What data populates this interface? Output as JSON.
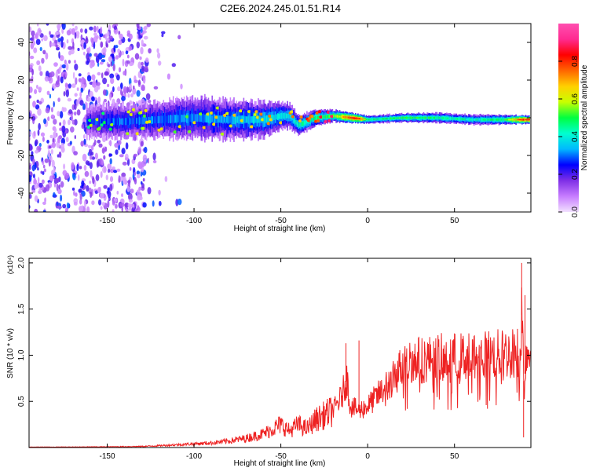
{
  "title": "C2E6.2024.245.01.51.R14",
  "chart_data": [
    {
      "type": "heatmap",
      "xlabel": "Height of straight line (km)",
      "ylabel": "Frequency (Hz)",
      "xlim": [
        -195,
        94
      ],
      "ylim": [
        -50,
        50
      ],
      "x_ticks": [
        -150,
        -100,
        -50,
        0,
        50
      ],
      "y_ticks": [
        -40,
        -20,
        0,
        20,
        40
      ],
      "colorbar": {
        "label": "Normalized spectral amplitude",
        "range": [
          0,
          1
        ],
        "ticks": [
          "0.0",
          "0.2",
          "0.4",
          "0.6",
          "0.8"
        ],
        "tick_values": [
          0.0,
          0.2,
          0.4,
          0.6,
          0.8
        ],
        "colors": [
          "#f2e0ff",
          "#c77dff",
          "#7f2fe6",
          "#0000ff",
          "#00b8ff",
          "#00ffd0",
          "#00ff40",
          "#c8ff00",
          "#ffd000",
          "#ff6600",
          "#ff0000",
          "#ff2a90",
          "#ff4fb0"
        ]
      },
      "centerline": {
        "x": [
          -160,
          -140,
          -120,
          -100,
          -80,
          -60,
          -50,
          -45,
          -40,
          -30,
          -20,
          -10,
          0,
          20,
          40,
          60,
          80,
          88,
          92
        ],
        "y": [
          -2,
          -2,
          -1,
          0,
          -1,
          -1,
          1,
          1,
          -4,
          0,
          1,
          0,
          -1,
          0,
          0,
          -1,
          -1,
          -1,
          -1
        ]
      },
      "band_amplitude": {
        "x": [
          -160,
          -140,
          -120,
          -100,
          -80,
          -60,
          -50,
          -45,
          -40,
          -30,
          -20,
          -10,
          -5,
          0,
          10,
          20,
          40,
          60,
          80,
          88,
          92
        ],
        "amp": [
          0.3,
          0.35,
          0.35,
          0.38,
          0.4,
          0.45,
          0.45,
          0.45,
          0.5,
          0.55,
          0.65,
          0.95,
          0.95,
          0.55,
          0.55,
          0.6,
          0.55,
          0.5,
          0.6,
          0.95,
          0.95
        ]
      },
      "band_halfwidth_hz": {
        "x": [
          -160,
          -120,
          -100,
          -60,
          -50,
          -40,
          -30,
          -20,
          0,
          40,
          80,
          92
        ],
        "w": [
          8,
          9,
          11,
          9,
          7,
          5,
          4,
          3,
          2,
          2.5,
          2.5,
          2
        ]
      },
      "noise_region_x": [
        -195,
        -127
      ]
    },
    {
      "type": "line",
      "xlabel": "Height of straight line (km)",
      "ylabel": "SNR (10 * v/v)",
      "y_multiplier": "(x10⁴)",
      "xlim": [
        -195,
        94
      ],
      "ylim": [
        0,
        2.05
      ],
      "x_ticks": [
        -150,
        -100,
        -50,
        0,
        50
      ],
      "y_ticks": [
        0.5,
        1.0,
        1.5,
        2.0
      ],
      "y_tick_labels": [
        "0.5",
        "1.0",
        "1.5",
        "2.0"
      ],
      "color": "#ee2222",
      "x": [
        -195,
        -170,
        -150,
        -130,
        -120,
        -110,
        -100,
        -90,
        -80,
        -70,
        -60,
        -55,
        -50,
        -45,
        -40,
        -35,
        -30,
        -25,
        -20,
        -15,
        -12,
        -10,
        -5,
        0,
        5,
        10,
        15,
        20,
        25,
        30,
        40,
        50,
        60,
        70,
        80,
        85,
        88,
        89,
        90,
        91,
        92,
        94
      ],
      "y": [
        0.005,
        0.006,
        0.008,
        0.012,
        0.02,
        0.03,
        0.04,
        0.05,
        0.07,
        0.1,
        0.15,
        0.2,
        0.25,
        0.18,
        0.25,
        0.2,
        0.3,
        0.35,
        0.4,
        0.55,
        0.75,
        0.45,
        0.4,
        0.45,
        0.55,
        0.65,
        0.75,
        0.9,
        0.95,
        0.95,
        0.97,
        0.98,
        0.99,
        1.0,
        1.02,
        1.03,
        1.05,
        1.6,
        0.5,
        1.0,
        1.03,
        1.04
      ],
      "spikes": [
        {
          "x": -12.5,
          "y": 1.13
        },
        {
          "x": -5,
          "y": 1.16
        },
        {
          "x": 88.7,
          "y": 2.0
        },
        {
          "x": 90.6,
          "y": 1.65
        },
        {
          "x": 89.8,
          "y": 0.11
        }
      ]
    }
  ]
}
